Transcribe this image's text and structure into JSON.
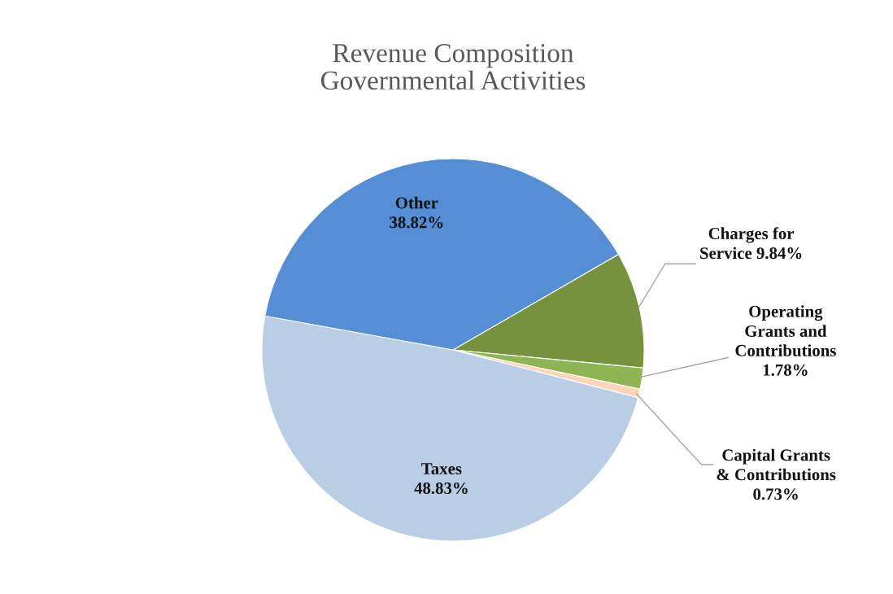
{
  "chart_data": {
    "type": "pie",
    "title": "Revenue Composition\nGovernmental Activities",
    "categories": [
      "Charges for\nService",
      "Operating\nGrants and\nContributions",
      "Capital Grants\n& Contributions",
      "Taxes",
      "Other"
    ],
    "values": [
      9.84,
      1.78,
      0.73,
      48.83,
      38.82
    ],
    "colors": [
      "#76923c",
      "#8db553",
      "#fbd5b5",
      "#b9cde5",
      "#558ed5"
    ],
    "value_labels": [
      "9.84%",
      "1.78%",
      "0.73%",
      "48.83%",
      "38.82%"
    ],
    "legend": false
  }
}
